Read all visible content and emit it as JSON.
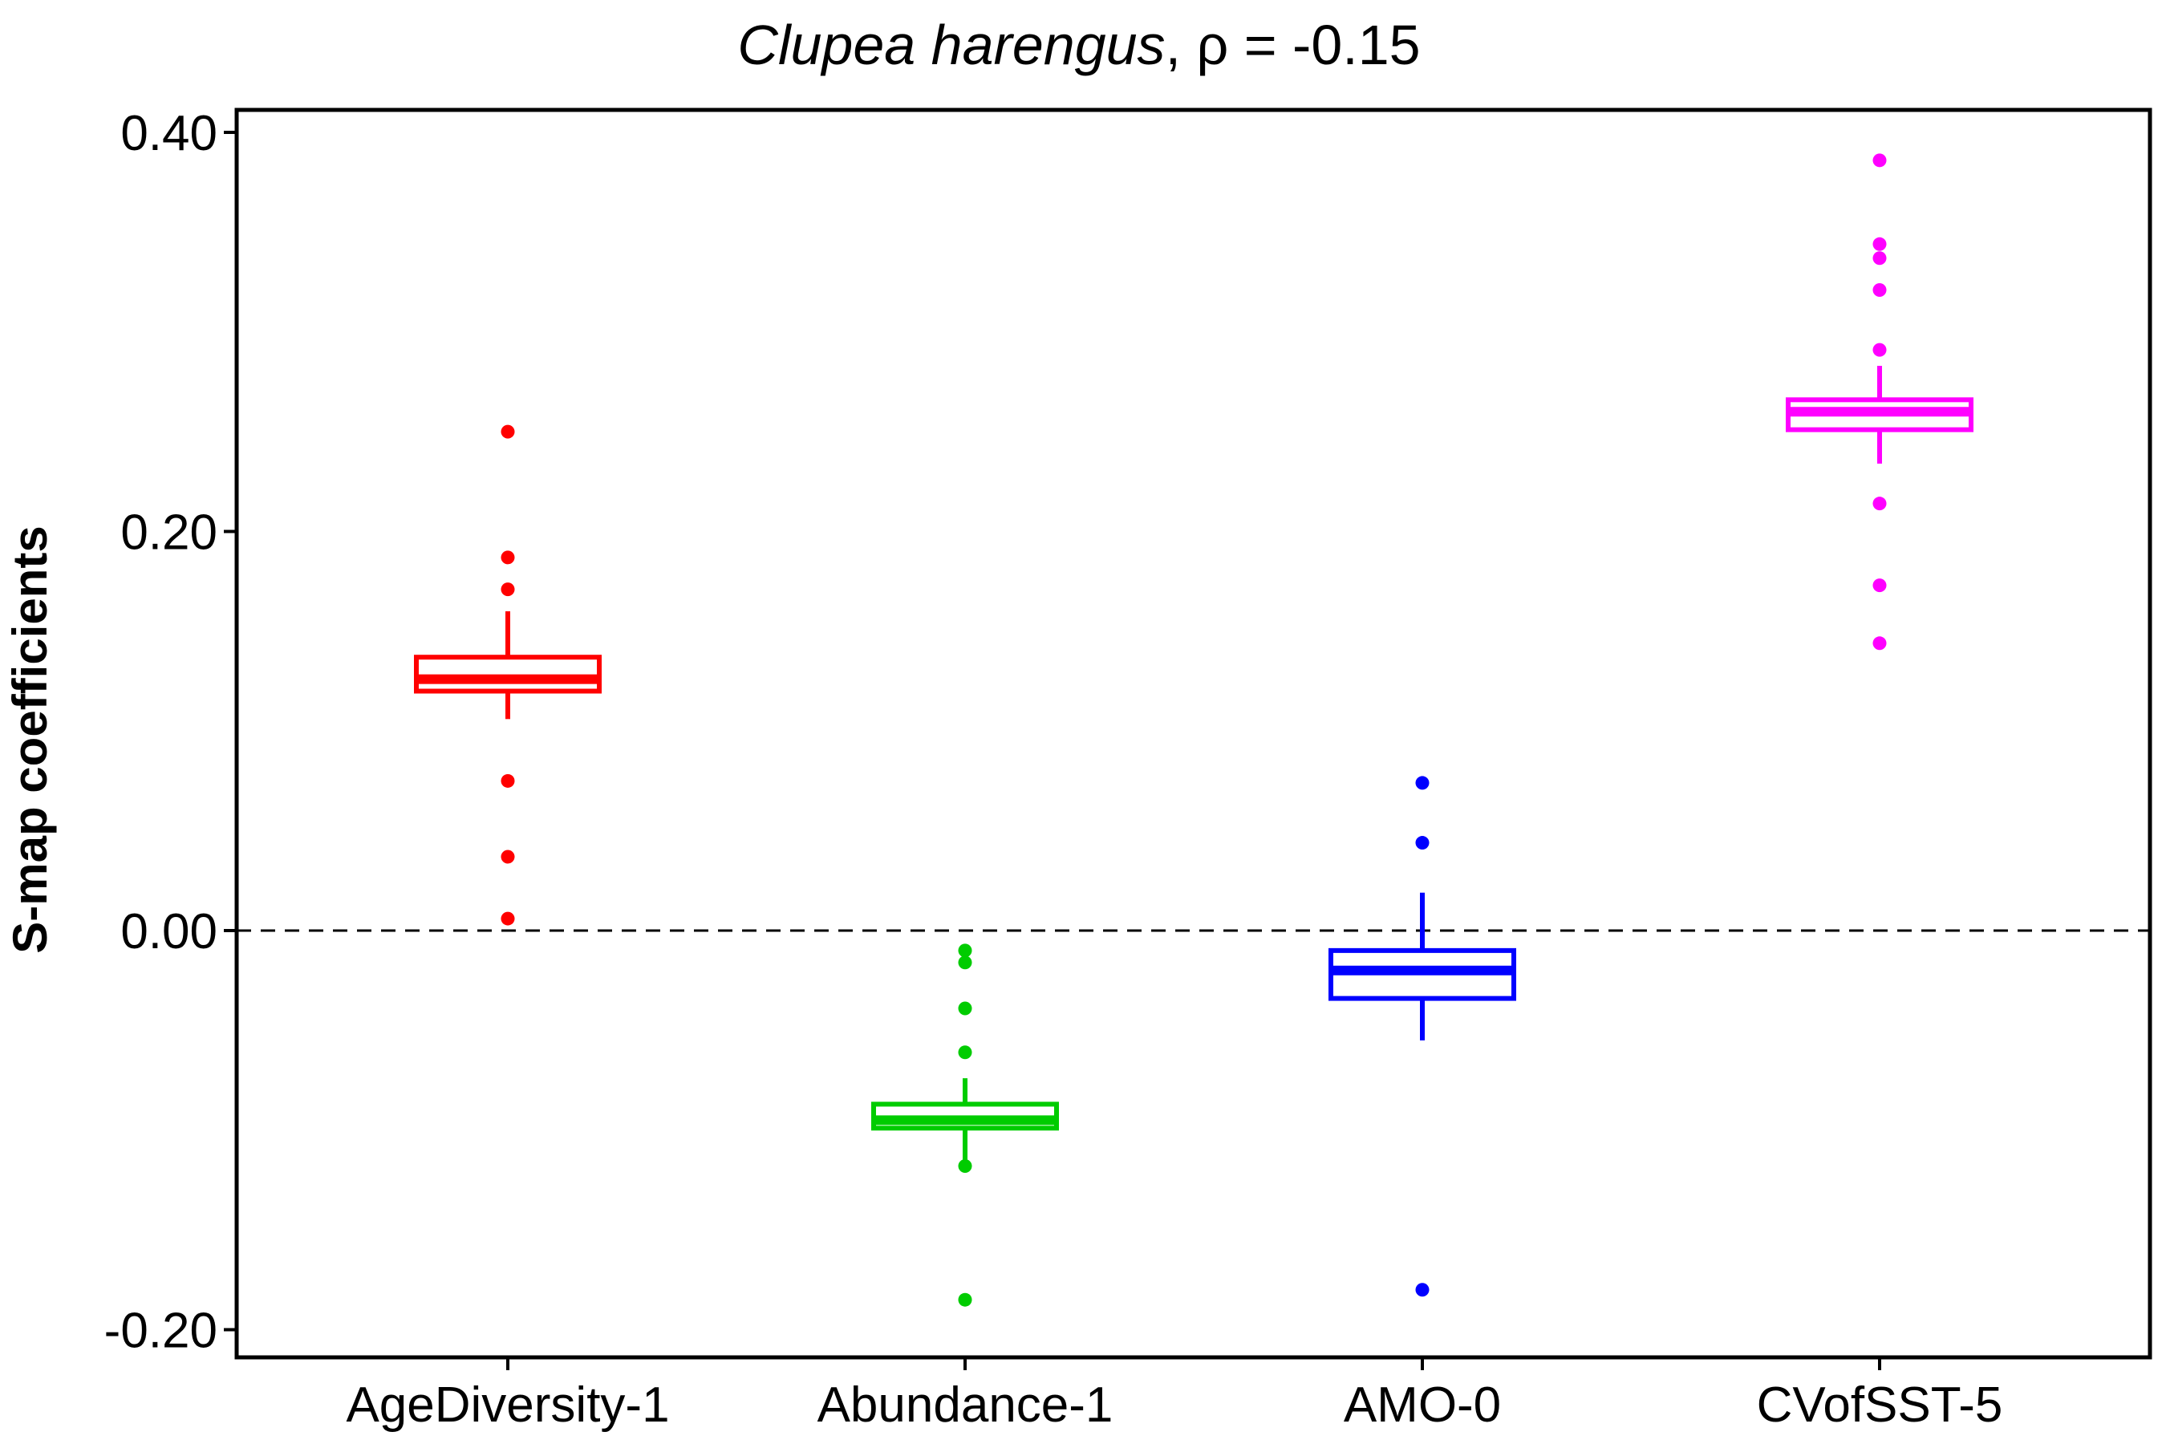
{
  "chart_data": {
    "type": "box",
    "title": {
      "species": "Clupea harengus",
      "suffix": ", ρ = -0.15"
    },
    "xlabel": "",
    "ylabel": "S-map coefficients",
    "ylim": [
      -0.21,
      0.41
    ],
    "yticks": [
      -0.2,
      0.0,
      0.2,
      0.4
    ],
    "ytick_labels": [
      "-0.20",
      "0.00",
      "0.20",
      "0.40"
    ],
    "reference_line": {
      "y": 0,
      "style": "dashed"
    },
    "grid": false,
    "categories": [
      "AgeDiversity-1",
      "Abundance-1",
      "AMO-0",
      "CVofSST-5"
    ],
    "boxes": [
      {
        "category": "AgeDiversity-1",
        "color": "#ff0000",
        "whisker_low": 0.106,
        "q1": 0.12,
        "median": 0.126,
        "q3": 0.137,
        "whisker_high": 0.16,
        "outliers": [
          0.25,
          0.187,
          0.171,
          0.075,
          0.037,
          0.006
        ]
      },
      {
        "category": "Abundance-1",
        "color": "#00cc00",
        "whisker_low": -0.117,
        "q1": -0.099,
        "median": -0.095,
        "q3": -0.087,
        "whisker_high": -0.074,
        "outliers": [
          -0.01,
          -0.016,
          -0.039,
          -0.061,
          -0.118,
          -0.185
        ]
      },
      {
        "category": "AMO-0",
        "color": "#0000ff",
        "whisker_low": -0.055,
        "q1": -0.034,
        "median": -0.02,
        "q3": -0.01,
        "whisker_high": 0.019,
        "outliers": [
          0.074,
          0.044,
          -0.18
        ]
      },
      {
        "category": "CVofSST-5",
        "color": "#ff00ff",
        "whisker_low": 0.234,
        "q1": 0.251,
        "median": 0.26,
        "q3": 0.266,
        "whisker_high": 0.283,
        "outliers": [
          0.386,
          0.344,
          0.337,
          0.321,
          0.291,
          0.214,
          0.173,
          0.144
        ]
      }
    ]
  }
}
